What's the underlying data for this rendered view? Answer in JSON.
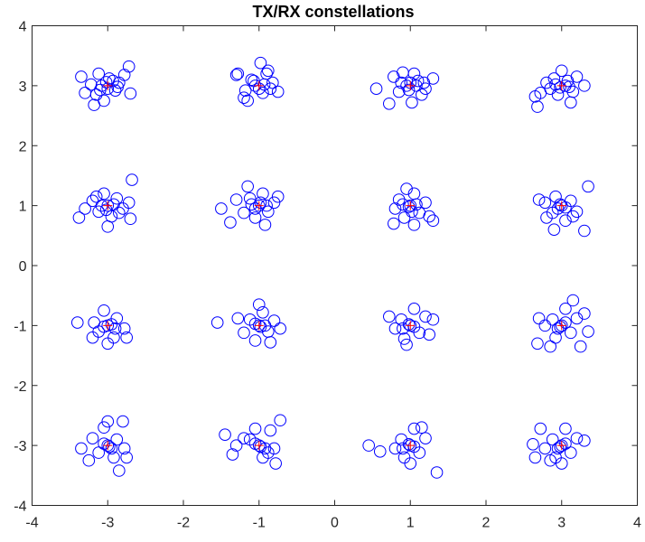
{
  "chart_data": {
    "type": "scatter",
    "title": "TX/RX constellations",
    "xlabel": "",
    "ylabel": "",
    "xlim": [
      -4,
      4
    ],
    "ylim": [
      -4,
      4
    ],
    "xticks": [
      -4,
      -3,
      -2,
      -1,
      0,
      1,
      2,
      3,
      4
    ],
    "yticks": [
      -4,
      -3,
      -2,
      -1,
      0,
      1,
      2,
      3,
      4
    ],
    "xtick_labels": [
      "-4",
      "-3",
      "-2",
      "-1",
      "0",
      "1",
      "2",
      "3",
      "4"
    ],
    "ytick_labels": [
      "-4",
      "-3",
      "-2",
      "-1",
      "0",
      "1",
      "2",
      "3",
      "4"
    ],
    "grid": false,
    "box": true,
    "colors": {
      "rx": "#0000ff",
      "tx": "#ff0000",
      "axis": "#262626"
    },
    "series": [
      {
        "marker": "circle",
        "color": "#0000ff",
        "points": [
          [
            -3.08,
            3.0
          ],
          [
            -2.85,
            3.05
          ],
          [
            -3.15,
            2.85
          ],
          [
            -2.98,
            3.12
          ],
          [
            -3.22,
            3.02
          ],
          [
            -2.9,
            2.92
          ],
          [
            -3.05,
            2.75
          ],
          [
            -2.78,
            3.18
          ],
          [
            -3.3,
            2.88
          ],
          [
            -3.12,
            3.2
          ],
          [
            -2.7,
            2.87
          ],
          [
            -3.35,
            3.15
          ],
          [
            -3.18,
            2.68
          ],
          [
            -2.72,
            3.32
          ],
          [
            -3.0,
            2.95
          ],
          [
            -2.93,
            3.08
          ],
          [
            -3.1,
            2.93
          ],
          [
            -2.87,
            2.98
          ],
          [
            -3.02,
            3.06
          ],
          [
            -1.05,
            3.0
          ],
          [
            -0.9,
            3.2
          ],
          [
            -1.2,
            2.8
          ],
          [
            -0.95,
            2.88
          ],
          [
            -1.1,
            3.1
          ],
          [
            -0.82,
            3.05
          ],
          [
            -1.28,
            3.2
          ],
          [
            -1.3,
            3.18
          ],
          [
            -0.98,
            3.38
          ],
          [
            -0.75,
            2.9
          ],
          [
            -1.15,
            2.75
          ],
          [
            -0.88,
            3.25
          ],
          [
            -1.0,
            2.95
          ],
          [
            -1.07,
            3.08
          ],
          [
            -0.93,
            3.02
          ],
          [
            -1.18,
            2.92
          ],
          [
            -0.85,
            2.95
          ],
          [
            0.95,
            3.0
          ],
          [
            1.1,
            3.08
          ],
          [
            0.85,
            2.9
          ],
          [
            1.2,
            2.95
          ],
          [
            1.05,
            3.2
          ],
          [
            0.78,
            3.15
          ],
          [
            1.3,
            3.12
          ],
          [
            0.55,
            2.95
          ],
          [
            1.02,
            2.72
          ],
          [
            0.72,
            2.7
          ],
          [
            1.15,
            2.85
          ],
          [
            0.9,
            3.22
          ],
          [
            1.0,
            3.05
          ],
          [
            0.98,
            2.93
          ],
          [
            1.08,
            3.0
          ],
          [
            0.88,
            3.05
          ],
          [
            1.18,
            3.05
          ],
          [
            3.05,
            3.0
          ],
          [
            2.9,
            3.12
          ],
          [
            3.15,
            2.9
          ],
          [
            2.95,
            2.85
          ],
          [
            3.2,
            3.15
          ],
          [
            2.8,
            3.05
          ],
          [
            3.3,
            3.0
          ],
          [
            2.72,
            2.88
          ],
          [
            2.65,
            2.82
          ],
          [
            3.12,
            2.72
          ],
          [
            2.68,
            2.65
          ],
          [
            3.0,
            3.25
          ],
          [
            2.85,
            2.95
          ],
          [
            3.08,
            3.08
          ],
          [
            2.98,
            2.97
          ],
          [
            3.1,
            2.98
          ],
          [
            2.92,
            3.02
          ],
          [
            -3.0,
            1.0
          ],
          [
            -2.88,
            1.12
          ],
          [
            -3.12,
            0.9
          ],
          [
            -2.8,
            0.95
          ],
          [
            -3.2,
            1.08
          ],
          [
            -2.95,
            0.82
          ],
          [
            -3.05,
            1.2
          ],
          [
            -3.3,
            0.95
          ],
          [
            -2.72,
            1.05
          ],
          [
            -2.68,
            1.43
          ],
          [
            -3.38,
            0.8
          ],
          [
            -2.7,
            0.78
          ],
          [
            -3.0,
            0.65
          ],
          [
            -3.15,
            1.15
          ],
          [
            -2.92,
            1.02
          ],
          [
            -3.08,
            1.0
          ],
          [
            -3.02,
            0.93
          ],
          [
            -2.85,
            0.88
          ],
          [
            -1.0,
            1.0
          ],
          [
            -1.12,
            1.12
          ],
          [
            -0.88,
            0.9
          ],
          [
            -1.2,
            0.88
          ],
          [
            -0.95,
            1.2
          ],
          [
            -1.05,
            0.8
          ],
          [
            -0.8,
            1.05
          ],
          [
            -1.3,
            1.1
          ],
          [
            -1.5,
            0.95
          ],
          [
            -1.38,
            0.72
          ],
          [
            -0.92,
            0.68
          ],
          [
            -0.75,
            1.15
          ],
          [
            -1.15,
            1.32
          ],
          [
            -0.98,
            1.05
          ],
          [
            -1.05,
            0.95
          ],
          [
            -0.9,
            1.0
          ],
          [
            -1.1,
            1.02
          ],
          [
            1.0,
            1.0
          ],
          [
            0.85,
            1.1
          ],
          [
            1.12,
            0.88
          ],
          [
            0.92,
            0.8
          ],
          [
            1.2,
            1.05
          ],
          [
            0.8,
            0.95
          ],
          [
            1.05,
            1.2
          ],
          [
            1.3,
            0.75
          ],
          [
            1.25,
            0.82
          ],
          [
            0.78,
            0.7
          ],
          [
            1.05,
            0.68
          ],
          [
            0.95,
            1.28
          ],
          [
            0.98,
            0.98
          ],
          [
            1.08,
            1.02
          ],
          [
            0.9,
            1.02
          ],
          [
            1.02,
            0.9
          ],
          [
            3.0,
            1.0
          ],
          [
            2.88,
            0.88
          ],
          [
            3.12,
            1.08
          ],
          [
            2.92,
            1.15
          ],
          [
            3.2,
            0.9
          ],
          [
            2.78,
            1.05
          ],
          [
            3.05,
            0.75
          ],
          [
            3.35,
            1.32
          ],
          [
            2.7,
            1.1
          ],
          [
            3.3,
            0.58
          ],
          [
            2.9,
            0.6
          ],
          [
            3.15,
            0.82
          ],
          [
            2.8,
            0.8
          ],
          [
            2.98,
            1.02
          ],
          [
            3.05,
            0.97
          ],
          [
            2.95,
            0.95
          ],
          [
            -3.0,
            -1.0
          ],
          [
            -2.88,
            -0.88
          ],
          [
            -3.12,
            -1.1
          ],
          [
            -2.92,
            -1.2
          ],
          [
            -3.18,
            -0.95
          ],
          [
            -2.78,
            -1.05
          ],
          [
            -3.05,
            -0.75
          ],
          [
            -3.4,
            -0.95
          ],
          [
            -2.75,
            -1.2
          ],
          [
            -3.2,
            -1.2
          ],
          [
            -3.0,
            -1.3
          ],
          [
            -2.95,
            -0.98
          ],
          [
            -3.05,
            -1.02
          ],
          [
            -2.9,
            -1.05
          ],
          [
            -1.0,
            -1.0
          ],
          [
            -1.12,
            -0.9
          ],
          [
            -0.88,
            -1.1
          ],
          [
            -0.95,
            -0.78
          ],
          [
            -1.2,
            -1.12
          ],
          [
            -0.8,
            -0.92
          ],
          [
            -1.05,
            -1.25
          ],
          [
            -1.55,
            -0.95
          ],
          [
            -1.28,
            -0.88
          ],
          [
            -0.85,
            -1.28
          ],
          [
            -1.0,
            -0.65
          ],
          [
            -0.72,
            -1.05
          ],
          [
            -0.98,
            -1.02
          ],
          [
            -1.05,
            -0.97
          ],
          [
            -0.92,
            -1.0
          ],
          [
            1.0,
            -1.0
          ],
          [
            0.88,
            -0.9
          ],
          [
            1.12,
            -1.12
          ],
          [
            0.92,
            -1.22
          ],
          [
            1.2,
            -0.85
          ],
          [
            0.8,
            -1.05
          ],
          [
            1.05,
            -0.72
          ],
          [
            0.72,
            -0.85
          ],
          [
            1.3,
            -0.9
          ],
          [
            0.95,
            -1.32
          ],
          [
            1.25,
            -1.15
          ],
          [
            0.98,
            -0.98
          ],
          [
            1.05,
            -1.02
          ],
          [
            0.9,
            -1.05
          ],
          [
            3.0,
            -1.0
          ],
          [
            2.88,
            -0.9
          ],
          [
            3.12,
            -1.12
          ],
          [
            2.92,
            -1.2
          ],
          [
            3.2,
            -0.88
          ],
          [
            2.78,
            -1.0
          ],
          [
            3.05,
            -0.72
          ],
          [
            3.3,
            -0.8
          ],
          [
            3.15,
            -0.58
          ],
          [
            2.7,
            -0.88
          ],
          [
            2.68,
            -1.3
          ],
          [
            2.85,
            -1.35
          ],
          [
            3.25,
            -1.35
          ],
          [
            3.35,
            -1.1
          ],
          [
            2.98,
            -1.02
          ],
          [
            3.05,
            -0.95
          ],
          [
            2.95,
            -1.05
          ],
          [
            -3.0,
            -3.0
          ],
          [
            -2.88,
            -2.9
          ],
          [
            -3.12,
            -3.12
          ],
          [
            -2.92,
            -3.2
          ],
          [
            -3.2,
            -2.88
          ],
          [
            -2.78,
            -3.05
          ],
          [
            -3.05,
            -2.7
          ],
          [
            -3.35,
            -3.05
          ],
          [
            -3.0,
            -2.6
          ],
          [
            -2.8,
            -2.6
          ],
          [
            -2.75,
            -3.2
          ],
          [
            -2.85,
            -3.42
          ],
          [
            -3.25,
            -3.25
          ],
          [
            -2.98,
            -3.02
          ],
          [
            -3.05,
            -2.97
          ],
          [
            -2.95,
            -3.05
          ],
          [
            -1.0,
            -3.0
          ],
          [
            -1.12,
            -2.9
          ],
          [
            -0.88,
            -3.12
          ],
          [
            -0.95,
            -3.2
          ],
          [
            -1.2,
            -2.88
          ],
          [
            -0.8,
            -3.05
          ],
          [
            -1.05,
            -2.72
          ],
          [
            -1.45,
            -2.82
          ],
          [
            -1.3,
            -3.0
          ],
          [
            -1.35,
            -3.15
          ],
          [
            -0.72,
            -2.58
          ],
          [
            -0.85,
            -2.75
          ],
          [
            -0.78,
            -3.3
          ],
          [
            -0.98,
            -3.02
          ],
          [
            -1.05,
            -2.97
          ],
          [
            -0.92,
            -3.05
          ],
          [
            1.0,
            -3.0
          ],
          [
            0.88,
            -2.9
          ],
          [
            1.12,
            -3.12
          ],
          [
            0.92,
            -3.2
          ],
          [
            1.2,
            -2.88
          ],
          [
            0.8,
            -3.05
          ],
          [
            1.05,
            -2.72
          ],
          [
            0.45,
            -3.0
          ],
          [
            0.6,
            -3.1
          ],
          [
            1.35,
            -3.45
          ],
          [
            1.15,
            -2.7
          ],
          [
            1.0,
            -3.3
          ],
          [
            0.98,
            -2.98
          ],
          [
            1.05,
            -3.02
          ],
          [
            0.9,
            -3.05
          ],
          [
            3.0,
            -3.0
          ],
          [
            2.88,
            -2.9
          ],
          [
            3.12,
            -3.12
          ],
          [
            2.92,
            -3.2
          ],
          [
            3.2,
            -2.88
          ],
          [
            2.78,
            -3.05
          ],
          [
            3.05,
            -2.72
          ],
          [
            2.72,
            -2.72
          ],
          [
            2.65,
            -3.2
          ],
          [
            2.62,
            -2.98
          ],
          [
            3.3,
            -2.92
          ],
          [
            3.0,
            -3.3
          ],
          [
            2.85,
            -3.25
          ],
          [
            2.98,
            -3.02
          ],
          [
            3.05,
            -2.97
          ],
          [
            2.95,
            -3.05
          ]
        ]
      },
      {
        "marker": "plus",
        "color": "#ff0000",
        "points": [
          [
            -3,
            3
          ],
          [
            -1,
            3
          ],
          [
            1,
            3
          ],
          [
            3,
            3
          ],
          [
            -3,
            1
          ],
          [
            -1,
            1
          ],
          [
            1,
            1
          ],
          [
            3,
            1
          ],
          [
            -3,
            -1
          ],
          [
            -1,
            -1
          ],
          [
            1,
            -1
          ],
          [
            3,
            -1
          ],
          [
            -3,
            -3
          ],
          [
            -1,
            -3
          ],
          [
            1,
            -3
          ],
          [
            3,
            -3
          ]
        ]
      }
    ]
  }
}
